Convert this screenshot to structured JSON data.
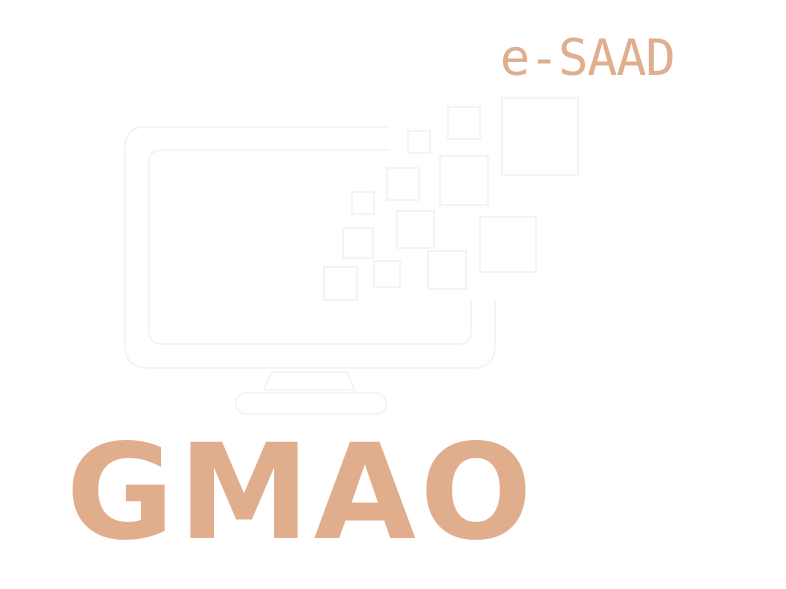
{
  "logo": {
    "brand_name": "e-SAAD",
    "product_name": "GMAO",
    "icon": "monitor-pixel-dissolve-icon"
  },
  "colors": {
    "background": "#ffffff",
    "accent": "#e0ad8d",
    "line": "#f2f2f2"
  }
}
